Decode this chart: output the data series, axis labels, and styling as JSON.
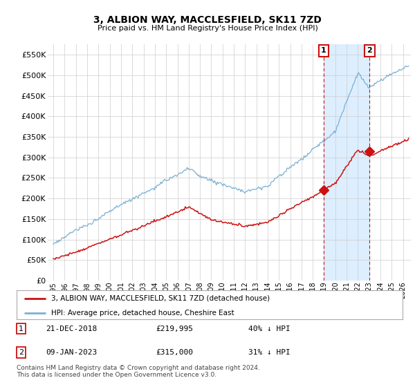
{
  "title": "3, ALBION WAY, MACCLESFIELD, SK11 7ZD",
  "subtitle": "Price paid vs. HM Land Registry's House Price Index (HPI)",
  "legend_line1": "3, ALBION WAY, MACCLESFIELD, SK11 7ZD (detached house)",
  "legend_line2": "HPI: Average price, detached house, Cheshire East",
  "annotation1_label": "1",
  "annotation1_date": "21-DEC-2018",
  "annotation1_price": "£219,995",
  "annotation1_hpi": "40% ↓ HPI",
  "annotation2_label": "2",
  "annotation2_date": "09-JAN-2023",
  "annotation2_price": "£315,000",
  "annotation2_hpi": "31% ↓ HPI",
  "footer": "Contains HM Land Registry data © Crown copyright and database right 2024.\nThis data is licensed under the Open Government Licence v3.0.",
  "hpi_color": "#7bafd4",
  "price_color": "#cc1111",
  "annotation_color": "#cc1111",
  "shade_color": "#ddeeff",
  "ylim": [
    0,
    575000
  ],
  "yticks": [
    0,
    50000,
    100000,
    150000,
    200000,
    250000,
    300000,
    350000,
    400000,
    450000,
    500000,
    550000
  ],
  "background_color": "#ffffff",
  "grid_color": "#cccccc",
  "sale1_t": 2018.958,
  "sale1_p": 219995,
  "sale2_t": 2023.042,
  "sale2_p": 315000
}
